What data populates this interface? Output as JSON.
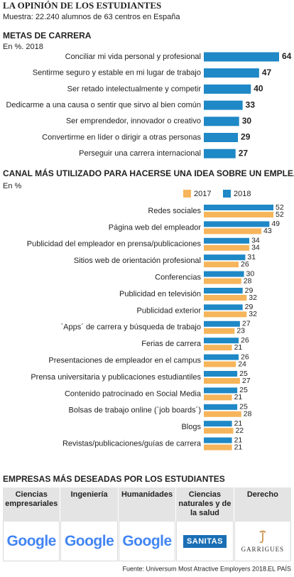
{
  "header": {
    "title": "LA OPINIÓN DE LOS ESTUDIANTES",
    "subtitle": "Muestra: 22.240 alumnos de 63 centros en España"
  },
  "chart_data": [
    {
      "type": "bar",
      "orientation": "horizontal",
      "title": "METAS DE CARRERA",
      "subtitle": "En %. 2018",
      "categories": [
        "Conciliar mi vida personal y profesional",
        "Sentirme seguro y estable en mi lugar de trabajo",
        "Ser retado intelectualmente y competir",
        "Dedicarme a una causa o sentir que sirvo al bien común",
        "Ser emprendedor, innovador o creativo",
        "Convertirme en líder o dirigir a otras personas",
        "Perseguir una carrera internacional"
      ],
      "values": [
        64,
        47,
        40,
        33,
        30,
        29,
        27
      ],
      "color": "#1f88c6"
    },
    {
      "type": "bar",
      "orientation": "horizontal",
      "title": "CANAL MÁS UTILIZADO PARA HACERSE UNA IDEA SOBRE UN EMPLEADOR",
      "subtitle": "En %",
      "categories": [
        "Redes sociales",
        "Página web del empleador",
        "Publicidad del empleador en prensa/publicaciones",
        "Sitios web de orientación profesional",
        "Conferencias",
        "Publicidad en televisión",
        "Publicidad exterior",
        "`Apps´ de carrera y búsqueda de trabajo",
        "Ferias de carrera",
        "Presentaciones de empleador en el campus",
        "Prensa universitaria y publicaciones estudiantiles",
        "Contenido patrocinado en Social Media",
        "Bolsas de trabajo online (`job boards´)",
        "Blogs",
        "Revistas/publicaciones/guías de carrera"
      ],
      "series": [
        {
          "name": "2017",
          "color": "#f6b55a",
          "values": [
            52,
            43,
            34,
            26,
            28,
            32,
            32,
            23,
            21,
            24,
            27,
            21,
            28,
            22,
            21
          ]
        },
        {
          "name": "2018",
          "color": "#1f88c6",
          "values": [
            52,
            49,
            34,
            31,
            30,
            29,
            29,
            27,
            26,
            26,
            25,
            25,
            25,
            21,
            21
          ]
        }
      ]
    }
  ],
  "companies": {
    "title": "EMPRESAS MÁS DESEADAS POR LOS ESTUDIANTES",
    "columns": [
      {
        "header": "Ciencias empresariales",
        "logo": "Google"
      },
      {
        "header": "Ingeniería",
        "logo": "Google"
      },
      {
        "header": "Humanidades",
        "logo": "Google"
      },
      {
        "header": "Ciencias naturales y de la salud",
        "logo": "SANITAS"
      },
      {
        "header": "Derecho",
        "logo": "GARRIGUES"
      }
    ]
  },
  "footer": {
    "source": "Fuente: Universum Most Atractive Employers 2018.",
    "brand": "EL PAÍS"
  }
}
